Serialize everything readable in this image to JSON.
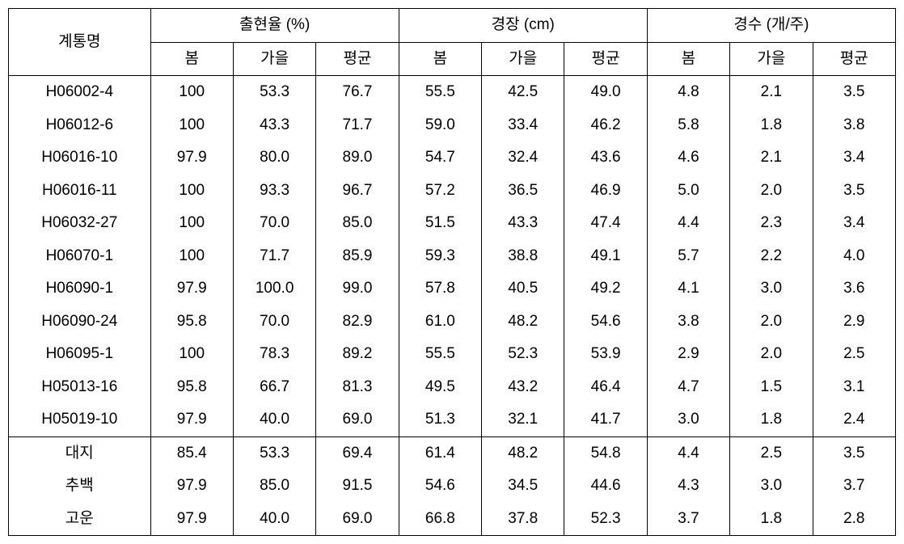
{
  "table": {
    "header": {
      "row_label": "계통명",
      "groups": [
        {
          "label": "출현율 (%)",
          "sub": [
            "봄",
            "가을",
            "평균"
          ]
        },
        {
          "label": "경장 (cm)",
          "sub": [
            "봄",
            "가을",
            "평균"
          ]
        },
        {
          "label": "경수 (개/주)",
          "sub": [
            "봄",
            "가을",
            "평균"
          ]
        }
      ]
    },
    "body_group_1": [
      {
        "name": "H06002-4",
        "vals": [
          "100",
          "53.3",
          "76.7",
          "55.5",
          "42.5",
          "49.0",
          "4.8",
          "2.1",
          "3.5"
        ]
      },
      {
        "name": "H06012-6",
        "vals": [
          "100",
          "43.3",
          "71.7",
          "59.0",
          "33.4",
          "46.2",
          "5.8",
          "1.8",
          "3.8"
        ]
      },
      {
        "name": "H06016-10",
        "vals": [
          "97.9",
          "80.0",
          "89.0",
          "54.7",
          "32.4",
          "43.6",
          "4.6",
          "2.1",
          "3.4"
        ]
      },
      {
        "name": "H06016-11",
        "vals": [
          "100",
          "93.3",
          "96.7",
          "57.2",
          "36.5",
          "46.9",
          "5.0",
          "2.0",
          "3.5"
        ]
      },
      {
        "name": "H06032-27",
        "vals": [
          "100",
          "70.0",
          "85.0",
          "51.5",
          "43.3",
          "47.4",
          "4.4",
          "2.3",
          "3.4"
        ]
      },
      {
        "name": "H06070-1",
        "vals": [
          "100",
          "71.7",
          "85.9",
          "59.3",
          "38.8",
          "49.1",
          "5.7",
          "2.2",
          "4.0"
        ]
      },
      {
        "name": "H06090-1",
        "vals": [
          "97.9",
          "100.0",
          "99.0",
          "57.8",
          "40.5",
          "49.2",
          "4.1",
          "3.0",
          "3.6"
        ]
      },
      {
        "name": "H06090-24",
        "vals": [
          "95.8",
          "70.0",
          "82.9",
          "61.0",
          "48.2",
          "54.6",
          "3.8",
          "2.0",
          "2.9"
        ]
      },
      {
        "name": "H06095-1",
        "vals": [
          "100",
          "78.3",
          "89.2",
          "55.5",
          "52.3",
          "53.9",
          "2.9",
          "2.0",
          "2.5"
        ]
      },
      {
        "name": "H05013-16",
        "vals": [
          "95.8",
          "66.7",
          "81.3",
          "49.5",
          "43.2",
          "46.4",
          "4.7",
          "1.5",
          "3.1"
        ]
      },
      {
        "name": "H05019-10",
        "vals": [
          "97.9",
          "40.0",
          "69.0",
          "51.3",
          "32.1",
          "41.7",
          "3.0",
          "1.8",
          "2.4"
        ]
      }
    ],
    "body_group_2": [
      {
        "name": "대지",
        "vals": [
          "85.4",
          "53.3",
          "69.4",
          "61.4",
          "48.2",
          "54.8",
          "4.4",
          "2.5",
          "3.5"
        ]
      },
      {
        "name": "추백",
        "vals": [
          "97.9",
          "85.0",
          "91.5",
          "54.6",
          "34.5",
          "44.6",
          "4.3",
          "3.0",
          "3.7"
        ]
      },
      {
        "name": "고운",
        "vals": [
          "97.9",
          "40.0",
          "69.0",
          "66.8",
          "37.8",
          "52.3",
          "3.7",
          "1.8",
          "2.8"
        ]
      }
    ]
  },
  "style": {
    "border_color": "#000000",
    "background_color": "#ffffff",
    "text_color": "#000000",
    "font_size_pt": 14,
    "cell_align": "center"
  }
}
